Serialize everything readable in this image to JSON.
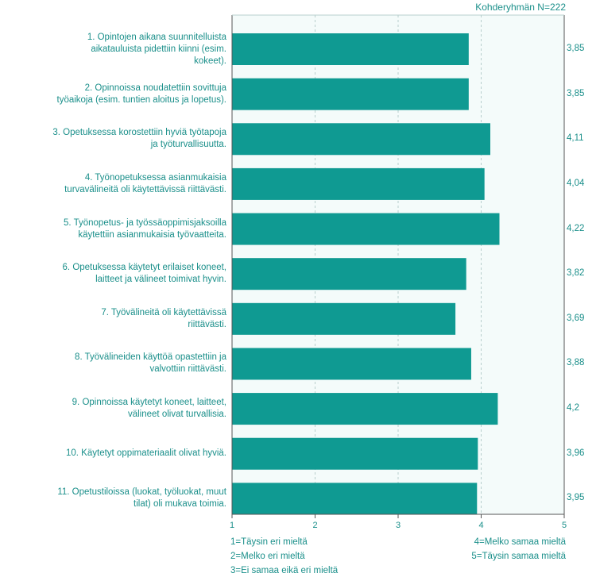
{
  "header": {
    "text": "Kohderyhmän N=222"
  },
  "chart_data": {
    "type": "bar",
    "orientation": "horizontal",
    "categories": [
      "1. Opintojen aikana suunnitelluista aikatauluista pidettiin kiinni (esim. kokeet).",
      "2. Opinnoissa noudatettiin sovittuja työaikoja (esim. tuntien aloitus ja lopetus).",
      "3. Opetuksessa korostettiin hyviä työtapoja ja työturvallisuutta.",
      "4. Työnopetuksessa asianmukaisia turvavälineitä oli käytettävissä riittävästi.",
      "5. Työnopetus- ja työssäoppimisjaksoilla käytettiin asianmukaisia työvaatteita.",
      "6. Opetuksessa käytetyt erilaiset koneet, laitteet ja välineet toimivat hyvin.",
      "7. Työvälineitä oli käytettävissä riittävästi.",
      "8. Työvälineiden käyttöä opastettiin ja valvottiin riittävästi.",
      "9. Opinnoissa käytetyt koneet, laitteet, välineet olivat turvallisia.",
      "10. Käytetyt oppimateriaalit olivat hyviä.",
      "11. Opetustiloissa (luokat, työluokat, muut tilat) oli mukava toimia."
    ],
    "category_lines": [
      [
        "1. Opintojen aikana suunnitelluista",
        "aikatauluista pidettiin kiinni (esim.",
        "kokeet)."
      ],
      [
        "2. Opinnoissa noudatettiin sovittuja",
        "työaikoja (esim. tuntien aloitus ja lopetus)."
      ],
      [
        "3. Opetuksessa korostettiin hyviä työtapoja",
        "ja työturvallisuutta."
      ],
      [
        "4. Työnopetuksessa asianmukaisia",
        "turvavälineitä oli käytettävissä riittävästi."
      ],
      [
        "5. Työnopetus- ja työssäoppimisjaksoilla",
        "käytettiin asianmukaisia työvaatteita."
      ],
      [
        "6. Opetuksessa käytetyt erilaiset koneet,",
        "laitteet ja välineet toimivat hyvin."
      ],
      [
        "7. Työvälineitä oli käytettävissä",
        "riittävästi."
      ],
      [
        "8. Työvälineiden käyttöä opastettiin ja",
        "valvottiin riittävästi."
      ],
      [
        "9. Opinnoissa käytetyt koneet, laitteet,",
        "välineet olivat turvallisia."
      ],
      [
        "10. Käytetyt oppimateriaalit olivat hyviä."
      ],
      [
        "11. Opetustiloissa (luokat, työluokat, muut",
        "tilat) oli mukava toimia."
      ]
    ],
    "values": [
      3.85,
      3.85,
      4.11,
      4.04,
      4.22,
      3.82,
      3.69,
      3.88,
      4.2,
      3.96,
      3.95
    ],
    "value_labels": [
      "3,85",
      "3,85",
      "4,11",
      "4,04",
      "4,22",
      "3,82",
      "3,69",
      "3,88",
      "4,2",
      "3,96",
      "3,95"
    ],
    "xlim": [
      1,
      5
    ],
    "xticks": [
      1,
      2,
      3,
      4,
      5
    ],
    "xtick_labels": [
      "1",
      "2",
      "3",
      "4",
      "5"
    ],
    "grid": true,
    "colors": {
      "bar": "#0f9a92",
      "text": "#1a8f8a",
      "plot_bg": "#f4fbfa",
      "grid": "#b9cfcd",
      "axis": "#555555"
    },
    "legend": {
      "left": [
        "1=Täysin eri mieltä",
        "2=Melko eri mieltä",
        "3=Ei samaa eikä eri mieltä"
      ],
      "right": [
        "4=Melko samaa mieltä",
        "5=Täysin samaa mieltä"
      ]
    }
  }
}
